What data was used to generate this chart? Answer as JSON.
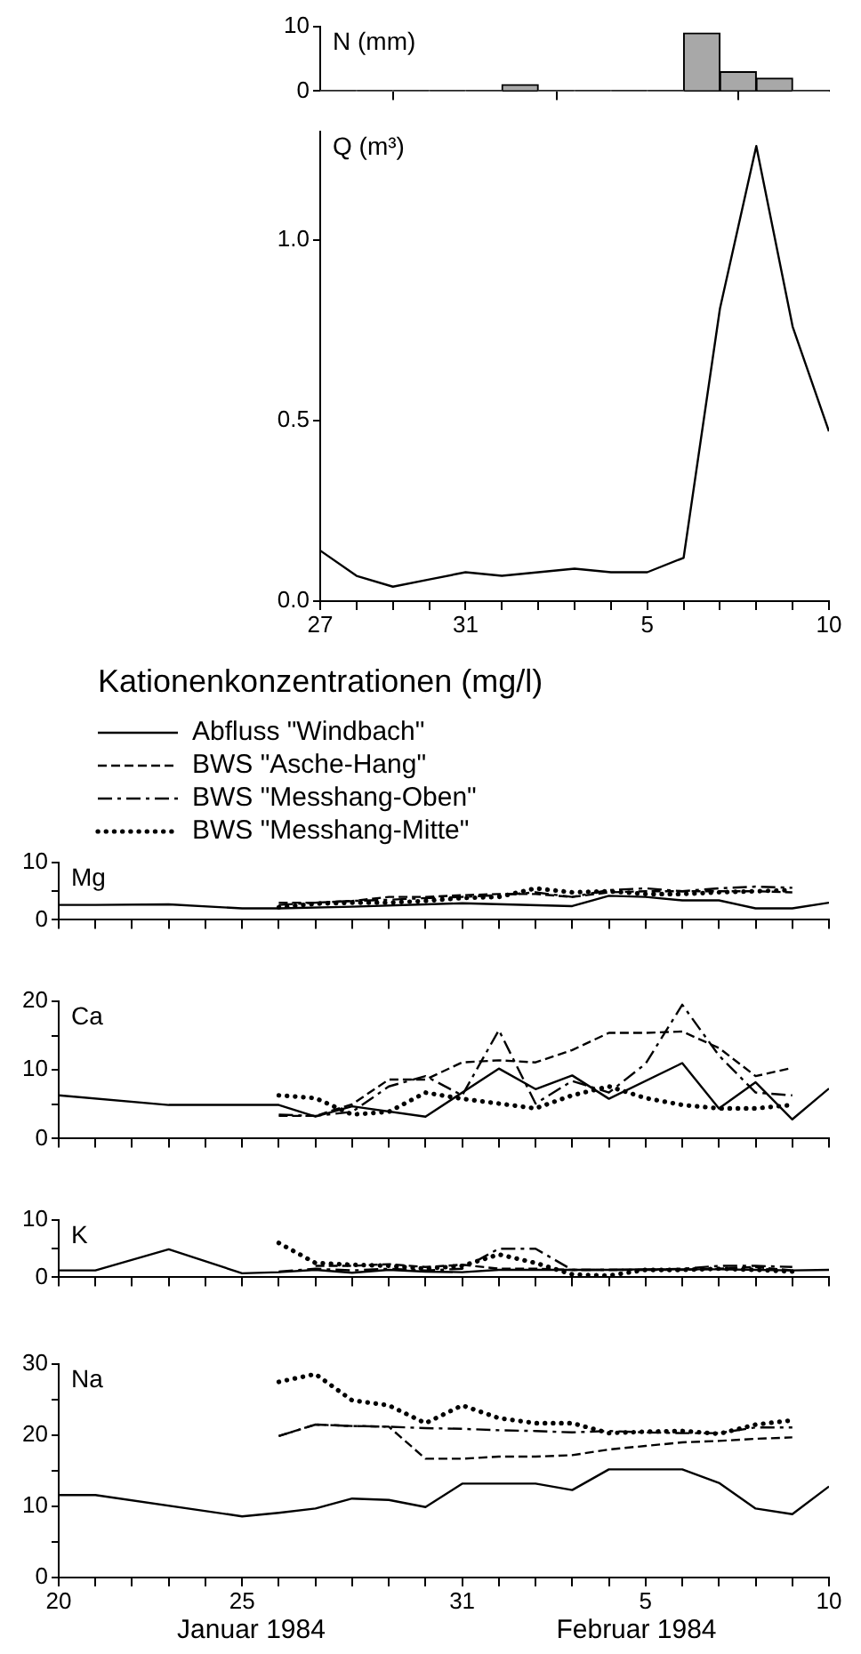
{
  "chart_data": [
    {
      "type": "histogram",
      "ylabel": "N (mm)",
      "color": "#a8a8a8",
      "tick_labels": "y",
      "bins": [
        "1984-01-27",
        "1984-01-28",
        "1984-01-29",
        "1984-01-30",
        "1984-01-31",
        "1984-02-01",
        "1984-02-02",
        "1984-02-03",
        "1984-02-04",
        "1984-02-05",
        "1984-02-06",
        "1984-02-07",
        "1984-02-08",
        "1984-02-09",
        "1984-02-10"
      ],
      "values": [
        0,
        0,
        0,
        0,
        0,
        1,
        0,
        0,
        0,
        0,
        9,
        3,
        2,
        0
      ],
      "xlim": [
        "1984-01-27",
        "1984-02-10"
      ],
      "xticks": [
        {
          "value": "1984-01-27",
          "label": null
        },
        {
          "value": "1984-01-31",
          "label": null
        },
        {
          "value": "1984-02-05",
          "label": null
        },
        {
          "value": "1984-02-10",
          "label": null
        }
      ],
      "ylim": [
        0,
        10
      ],
      "yticks": [
        0,
        10
      ]
    },
    {
      "type": "line",
      "ylabel": "Q (m³)",
      "series": [
        {
          "color": "#000000",
          "line_style": "solid",
          "x": [
            "1984-01-27",
            "1984-01-28",
            "1984-01-29",
            "1984-01-30",
            "1984-01-31",
            "1984-02-01",
            "1984-02-02",
            "1984-02-03",
            "1984-02-04",
            "1984-02-05",
            "1984-02-06",
            "1984-02-07",
            "1984-02-08",
            "1984-02-09",
            "1984-02-10"
          ],
          "values": [
            0.14,
            0.07,
            0.04,
            0.06,
            0.08,
            0.07,
            0.08,
            0.09,
            0.08,
            0.08,
            0.12,
            0.81,
            1.26,
            0.76,
            0.47
          ]
        }
      ],
      "xlim": [
        "1984-01-27",
        "1984-02-10"
      ],
      "xticks": [
        {
          "value": "1984-01-27",
          "label": "27"
        },
        {
          "value": "1984-01-28",
          "label": null
        },
        {
          "value": "1984-01-29",
          "label": null
        },
        {
          "value": "1984-01-30",
          "label": null
        },
        {
          "value": "1984-01-31",
          "label": "31"
        },
        {
          "value": "1984-02-01",
          "label": null
        },
        {
          "value": "1984-02-02",
          "label": null
        },
        {
          "value": "1984-02-03",
          "label": null
        },
        {
          "value": "1984-02-04",
          "label": null
        },
        {
          "value": "1984-02-05",
          "label": "5"
        },
        {
          "value": "1984-02-06",
          "label": null
        },
        {
          "value": "1984-02-07",
          "label": null
        },
        {
          "value": "1984-02-08",
          "label": null
        },
        {
          "value": "1984-02-09",
          "label": null
        },
        {
          "value": "1984-02-10",
          "label": "10"
        }
      ],
      "ylim": [
        0,
        1.3
      ],
      "yticks": [
        {
          "value": 0,
          "label": "0.0"
        },
        {
          "value": 0.5,
          "label": "0.5"
        },
        {
          "value": 1,
          "label": "1.0"
        }
      ]
    },
    {
      "type": "line",
      "title": "Kationenkonzentrationen (mg/l)",
      "ylabel": "Mg",
      "legend": "top left",
      "tick_labels": "y",
      "series": [
        {
          "name": "Abfluss \"Windbach\"",
          "color": "#000000",
          "line_style": "solid",
          "x": [
            "1984-01-20",
            "1984-01-21",
            "1984-01-23",
            "1984-01-25",
            "1984-01-26",
            "1984-01-28",
            "1984-01-31",
            "1984-02-03",
            "1984-02-04",
            "1984-02-05",
            "1984-02-06",
            "1984-02-07",
            "1984-02-08",
            "1984-02-09",
            "1984-02-10"
          ],
          "values": [
            2.6,
            2.6,
            2.7,
            2.0,
            2.0,
            2.3,
            2.9,
            2.4,
            4.2,
            4.0,
            3.4,
            3.4,
            2.0,
            2.0,
            3.0
          ]
        },
        {
          "name": "BWS \"Asche-Hang\"",
          "color": "#000000",
          "line_style": "dashed",
          "x": [
            "1984-01-26",
            "1984-01-27",
            "1984-01-28",
            "1984-01-29",
            "1984-01-30",
            "1984-01-31",
            "1984-02-01",
            "1984-02-02",
            "1984-02-03",
            "1984-02-04",
            "1984-02-05",
            "1984-02-06",
            "1984-02-07",
            "1984-02-08",
            "1984-02-09"
          ],
          "values": [
            3.0,
            3.0,
            3.3,
            4.0,
            4.0,
            4.3,
            4.5,
            4.5,
            4.0,
            4.8,
            5.0,
            5.0,
            5.0,
            5.0,
            4.8
          ]
        },
        {
          "name": "BWS \"Messhang-Oben\"",
          "color": "#000000",
          "line_style": "dashdot",
          "x": [
            "1984-01-26",
            "1984-01-27",
            "1984-01-28",
            "1984-01-29",
            "1984-01-30",
            "1984-01-31",
            "1984-02-01",
            "1984-02-02",
            "1984-02-03",
            "1984-02-04",
            "1984-02-05",
            "1984-02-06",
            "1984-02-07",
            "1984-02-08",
            "1984-02-09"
          ],
          "values": [
            2.6,
            3.0,
            3.3,
            3.5,
            3.8,
            4.0,
            4.3,
            4.8,
            4.0,
            5.2,
            5.5,
            5.0,
            5.5,
            5.8,
            5.6
          ]
        },
        {
          "name": "BWS \"Messhang-Mitte\"",
          "color": "#000000",
          "line_style": "dotted",
          "x": [
            "1984-01-26",
            "1984-01-27",
            "1984-01-28",
            "1984-01-29",
            "1984-01-30",
            "1984-01-31",
            "1984-02-01",
            "1984-02-02",
            "1984-02-03",
            "1984-02-04",
            "1984-02-05",
            "1984-02-06",
            "1984-02-07",
            "1984-02-08",
            "1984-02-09"
          ],
          "values": [
            2.2,
            2.8,
            3.0,
            3.0,
            3.3,
            3.8,
            4.0,
            5.5,
            4.8,
            5.0,
            4.5,
            4.5,
            4.8,
            5.0,
            5.2
          ]
        }
      ],
      "xlim": [
        "1984-01-20",
        "1984-02-10"
      ],
      "xticks": [
        {
          "value": "1984-01-20",
          "label": null
        },
        {
          "value": "1984-01-21",
          "label": null
        },
        {
          "value": "1984-01-22",
          "label": null
        },
        {
          "value": "1984-01-23",
          "label": null
        },
        {
          "value": "1984-01-24",
          "label": null
        },
        {
          "value": "1984-01-25",
          "label": null
        },
        {
          "value": "1984-01-26",
          "label": null
        },
        {
          "value": "1984-01-27",
          "label": null
        },
        {
          "value": "1984-01-28",
          "label": null
        },
        {
          "value": "1984-01-29",
          "label": null
        },
        {
          "value": "1984-01-30",
          "label": null
        },
        {
          "value": "1984-01-31",
          "label": null
        },
        {
          "value": "1984-02-01",
          "label": null
        },
        {
          "value": "1984-02-02",
          "label": null
        },
        {
          "value": "1984-02-03",
          "label": null
        },
        {
          "value": "1984-02-04",
          "label": null
        },
        {
          "value": "1984-02-05",
          "label": null
        },
        {
          "value": "1984-02-06",
          "label": null
        },
        {
          "value": "1984-02-07",
          "label": null
        },
        {
          "value": "1984-02-08",
          "label": null
        },
        {
          "value": "1984-02-09",
          "label": null
        },
        {
          "value": "1984-02-10",
          "label": null
        }
      ],
      "ylim": [
        0,
        10
      ],
      "yticks": [
        0,
        {
          "value": 5,
          "label": null
        },
        10
      ]
    },
    {
      "type": "line",
      "ylabel": "Ca",
      "tick_labels": "y",
      "series": [
        {
          "color": "#000000",
          "line_style": "solid",
          "x": [
            "1984-01-20",
            "1984-01-23",
            "1984-01-26",
            "1984-01-27",
            "1984-01-28",
            "1984-01-30",
            "1984-02-01",
            "1984-02-02",
            "1984-02-03",
            "1984-02-04",
            "1984-02-06",
            "1984-02-07",
            "1984-02-08",
            "1984-02-09",
            "1984-02-10"
          ],
          "values": [
            6.3,
            4.9,
            4.9,
            3.2,
            4.7,
            3.2,
            10.2,
            7.2,
            9.2,
            5.8,
            11.0,
            4.4,
            8.2,
            2.8,
            7.3
          ]
        },
        {
          "color": "#000000",
          "line_style": "dashed",
          "x": [
            "1984-01-26",
            "1984-01-27",
            "1984-01-28",
            "1984-01-29",
            "1984-01-30",
            "1984-01-31",
            "1984-02-01",
            "1984-02-02",
            "1984-02-03",
            "1984-02-04",
            "1984-02-05",
            "1984-02-06",
            "1984-02-07",
            "1984-02-08",
            "1984-02-09"
          ],
          "values": [
            3.3,
            3.3,
            5.0,
            8.6,
            8.6,
            11.1,
            11.4,
            11.1,
            12.9,
            15.4,
            15.4,
            15.6,
            13.2,
            9.1,
            10.3
          ]
        },
        {
          "color": "#000000",
          "line_style": "dashdot",
          "x": [
            "1984-01-26",
            "1984-01-27",
            "1984-01-28",
            "1984-01-29",
            "1984-01-30",
            "1984-01-31",
            "1984-02-01",
            "1984-02-02",
            "1984-02-03",
            "1984-02-04",
            "1984-02-05",
            "1984-02-06",
            "1984-02-07",
            "1984-02-08",
            "1984-02-09"
          ],
          "values": [
            3.5,
            3.3,
            3.9,
            7.6,
            9.1,
            6.3,
            15.8,
            5.1,
            8.4,
            6.7,
            10.9,
            19.5,
            12.1,
            6.7,
            6.3
          ]
        },
        {
          "color": "#000000",
          "line_style": "dotted",
          "x": [
            "1984-01-26",
            "1984-01-27",
            "1984-01-28",
            "1984-01-29",
            "1984-01-30",
            "1984-01-31",
            "1984-02-01",
            "1984-02-02",
            "1984-02-03",
            "1984-02-04",
            "1984-02-05",
            "1984-02-06",
            "1984-02-07",
            "1984-02-08",
            "1984-02-09"
          ],
          "values": [
            6.3,
            5.9,
            3.5,
            3.9,
            6.7,
            5.8,
            5.1,
            4.4,
            6.3,
            7.6,
            5.9,
            4.9,
            4.4,
            4.4,
            4.9
          ]
        }
      ],
      "xlim": [
        "1984-01-20",
        "1984-02-10"
      ],
      "xticks": [
        {
          "value": "1984-01-20",
          "label": null
        },
        {
          "value": "1984-01-21",
          "label": null
        },
        {
          "value": "1984-01-22",
          "label": null
        },
        {
          "value": "1984-01-23",
          "label": null
        },
        {
          "value": "1984-01-24",
          "label": null
        },
        {
          "value": "1984-01-25",
          "label": null
        },
        {
          "value": "1984-01-26",
          "label": null
        },
        {
          "value": "1984-01-27",
          "label": null
        },
        {
          "value": "1984-01-28",
          "label": null
        },
        {
          "value": "1984-01-29",
          "label": null
        },
        {
          "value": "1984-01-30",
          "label": null
        },
        {
          "value": "1984-01-31",
          "label": null
        },
        {
          "value": "1984-02-01",
          "label": null
        },
        {
          "value": "1984-02-02",
          "label": null
        },
        {
          "value": "1984-02-03",
          "label": null
        },
        {
          "value": "1984-02-04",
          "label": null
        },
        {
          "value": "1984-02-05",
          "label": null
        },
        {
          "value": "1984-02-06",
          "label": null
        },
        {
          "value": "1984-02-07",
          "label": null
        },
        {
          "value": "1984-02-08",
          "label": null
        },
        {
          "value": "1984-02-09",
          "label": null
        },
        {
          "value": "1984-02-10",
          "label": null
        }
      ],
      "ylim": [
        0,
        20
      ],
      "yticks": [
        0,
        {
          "value": 5,
          "label": null
        },
        10,
        {
          "value": 15,
          "label": null
        },
        20
      ]
    },
    {
      "type": "line",
      "ylabel": "K",
      "tick_labels": "y",
      "series": [
        {
          "color": "#000000",
          "line_style": "solid",
          "x": [
            "1984-01-20",
            "1984-01-21",
            "1984-01-23",
            "1984-01-25",
            "1984-01-26",
            "1984-01-27",
            "1984-01-28",
            "1984-01-29",
            "1984-01-30",
            "1984-01-31",
            "1984-02-01",
            "1984-02-02",
            "1984-02-03",
            "1984-02-04",
            "1984-02-05",
            "1984-02-06",
            "1984-02-07",
            "1984-02-08",
            "1984-02-09",
            "1984-02-10"
          ],
          "values": [
            1.2,
            1.2,
            4.9,
            0.7,
            0.9,
            1.3,
            0.8,
            1.3,
            1.0,
            0.9,
            1.3,
            1.3,
            1.3,
            1.3,
            1.4,
            1.4,
            1.4,
            1.3,
            1.2,
            1.3
          ]
        },
        {
          "color": "#000000",
          "line_style": "dashed",
          "x": [
            "1984-01-27",
            "1984-01-28",
            "1984-01-29",
            "1984-01-30",
            "1984-01-31",
            "1984-02-01",
            "1984-02-02",
            "1984-02-03",
            "1984-02-04",
            "1984-02-05",
            "1984-02-06",
            "1984-02-07",
            "1984-02-08",
            "1984-02-09"
          ],
          "values": [
            2.0,
            2.0,
            2.3,
            1.8,
            2.2,
            1.5,
            1.5,
            1.3,
            1.3,
            1.3,
            1.3,
            1.5,
            1.8,
            1.2
          ]
        },
        {
          "color": "#000000",
          "line_style": "dashdot",
          "x": [
            "1984-01-26",
            "1984-01-27",
            "1984-01-28",
            "1984-01-29",
            "1984-01-30",
            "1984-01-31",
            "1984-02-01",
            "1984-02-02",
            "1984-02-03",
            "1984-02-04",
            "1984-02-05",
            "1984-02-06",
            "1984-02-07",
            "1984-02-08",
            "1984-02-09"
          ],
          "values": [
            1.0,
            1.5,
            1.2,
            1.5,
            1.2,
            1.5,
            5.0,
            5.0,
            1.3,
            1.3,
            1.3,
            1.5,
            2.0,
            2.0,
            1.8
          ]
        },
        {
          "color": "#000000",
          "line_style": "dotted",
          "x": [
            "1984-01-26",
            "1984-01-27",
            "1984-01-28",
            "1984-01-29",
            "1984-01-30",
            "1984-01-31",
            "1984-02-01",
            "1984-02-02",
            "1984-02-03",
            "1984-02-04",
            "1984-02-05",
            "1984-02-06",
            "1984-02-07",
            "1984-02-08",
            "1984-02-09"
          ],
          "values": [
            6.0,
            2.5,
            2.2,
            2.0,
            1.5,
            2.0,
            4.0,
            2.5,
            0.5,
            0.3,
            1.3,
            1.3,
            1.5,
            1.3,
            1.0
          ]
        }
      ],
      "xlim": [
        "1984-01-20",
        "1984-02-10"
      ],
      "xticks": [
        {
          "value": "1984-01-20",
          "label": null
        },
        {
          "value": "1984-01-21",
          "label": null
        },
        {
          "value": "1984-01-22",
          "label": null
        },
        {
          "value": "1984-01-23",
          "label": null
        },
        {
          "value": "1984-01-24",
          "label": null
        },
        {
          "value": "1984-01-25",
          "label": null
        },
        {
          "value": "1984-01-26",
          "label": null
        },
        {
          "value": "1984-01-27",
          "label": null
        },
        {
          "value": "1984-01-28",
          "label": null
        },
        {
          "value": "1984-01-29",
          "label": null
        },
        {
          "value": "1984-01-30",
          "label": null
        },
        {
          "value": "1984-01-31",
          "label": null
        },
        {
          "value": "1984-02-01",
          "label": null
        },
        {
          "value": "1984-02-02",
          "label": null
        },
        {
          "value": "1984-02-03",
          "label": null
        },
        {
          "value": "1984-02-04",
          "label": null
        },
        {
          "value": "1984-02-05",
          "label": null
        },
        {
          "value": "1984-02-06",
          "label": null
        },
        {
          "value": "1984-02-07",
          "label": null
        },
        {
          "value": "1984-02-08",
          "label": null
        },
        {
          "value": "1984-02-09",
          "label": null
        },
        {
          "value": "1984-02-10",
          "label": null
        }
      ],
      "ylim": [
        0,
        10
      ],
      "yticks": [
        0,
        {
          "value": 5,
          "label": null
        },
        10
      ]
    },
    {
      "type": "line",
      "ylabel": "Na",
      "annotations": [
        "Januar 1984",
        "Februar 1984"
      ],
      "series": [
        {
          "color": "#000000",
          "line_style": "solid",
          "x": [
            "1984-01-20",
            "1984-01-21",
            "1984-01-25",
            "1984-01-26",
            "1984-01-27",
            "1984-01-28",
            "1984-01-29",
            "1984-01-30",
            "1984-01-31",
            "1984-02-01",
            "1984-02-02",
            "1984-02-03",
            "1984-02-04",
            "1984-02-05",
            "1984-02-06",
            "1984-02-07",
            "1984-02-08",
            "1984-02-09",
            "1984-02-10"
          ],
          "values": [
            11.6,
            11.6,
            8.6,
            9.1,
            9.7,
            11.1,
            10.9,
            9.9,
            13.2,
            13.2,
            13.2,
            12.3,
            15.2,
            15.2,
            15.2,
            13.3,
            9.7,
            8.9,
            12.8
          ]
        },
        {
          "color": "#000000",
          "line_style": "dashed",
          "x": [
            "1984-01-26",
            "1984-01-27",
            "1984-01-28",
            "1984-01-29",
            "1984-01-30",
            "1984-01-31",
            "1984-02-01",
            "1984-02-02",
            "1984-02-03",
            "1984-02-04",
            "1984-02-05",
            "1984-02-06",
            "1984-02-07",
            "1984-02-08",
            "1984-02-09"
          ],
          "values": [
            19.9,
            21.5,
            21.3,
            21.2,
            16.7,
            16.7,
            17.0,
            17.0,
            17.2,
            18.0,
            18.5,
            19.0,
            19.2,
            19.5,
            19.7
          ]
        },
        {
          "color": "#000000",
          "line_style": "dashdot",
          "x": [
            "1984-01-26",
            "1984-01-27",
            "1984-01-28",
            "1984-01-29",
            "1984-01-30",
            "1984-01-31",
            "1984-02-01",
            "1984-02-02",
            "1984-02-03",
            "1984-02-04",
            "1984-02-05",
            "1984-02-06",
            "1984-02-07",
            "1984-02-08",
            "1984-02-09"
          ],
          "values": [
            19.9,
            21.5,
            21.3,
            21.2,
            21.0,
            20.9,
            20.7,
            20.6,
            20.4,
            20.6,
            20.4,
            20.3,
            20.3,
            21.1,
            21.1
          ]
        },
        {
          "color": "#000000",
          "line_style": "dotted",
          "x": [
            "1984-01-26",
            "1984-01-27",
            "1984-01-28",
            "1984-01-29",
            "1984-01-30",
            "1984-01-31",
            "1984-02-01",
            "1984-02-02",
            "1984-02-03",
            "1984-02-04",
            "1984-02-05",
            "1984-02-06",
            "1984-02-07",
            "1984-02-08",
            "1984-02-09"
          ],
          "values": [
            27.5,
            28.6,
            24.9,
            24.2,
            21.7,
            24.2,
            22.4,
            21.7,
            21.7,
            20.3,
            20.5,
            20.6,
            20.2,
            21.5,
            22.1
          ]
        }
      ],
      "xlim": [
        "1984-01-20",
        "1984-02-10"
      ],
      "xticks": [
        {
          "value": "1984-01-20",
          "label": "20"
        },
        {
          "value": "1984-01-21",
          "label": null
        },
        {
          "value": "1984-01-22",
          "label": null
        },
        {
          "value": "1984-01-23",
          "label": null
        },
        {
          "value": "1984-01-24",
          "label": null
        },
        {
          "value": "1984-01-25",
          "label": "25"
        },
        {
          "value": "1984-01-26",
          "label": null
        },
        {
          "value": "1984-01-27",
          "label": null
        },
        {
          "value": "1984-01-28",
          "label": null
        },
        {
          "value": "1984-01-29",
          "label": null
        },
        {
          "value": "1984-01-30",
          "label": null
        },
        {
          "value": "1984-01-31",
          "label": "31"
        },
        {
          "value": "1984-02-01",
          "label": null
        },
        {
          "value": "1984-02-02",
          "label": null
        },
        {
          "value": "1984-02-03",
          "label": null
        },
        {
          "value": "1984-02-04",
          "label": null
        },
        {
          "value": "1984-02-05",
          "label": "5"
        },
        {
          "value": "1984-02-06",
          "label": null
        },
        {
          "value": "1984-02-07",
          "label": null
        },
        {
          "value": "1984-02-08",
          "label": null
        },
        {
          "value": "1984-02-09",
          "label": null
        },
        {
          "value": "1984-02-10",
          "label": "10"
        }
      ],
      "ylim": [
        0,
        30
      ],
      "yticks": [
        0,
        {
          "value": 5,
          "label": null
        },
        10,
        {
          "value": 15,
          "label": null
        },
        20,
        {
          "value": 25,
          "label": null
        },
        30
      ]
    }
  ]
}
